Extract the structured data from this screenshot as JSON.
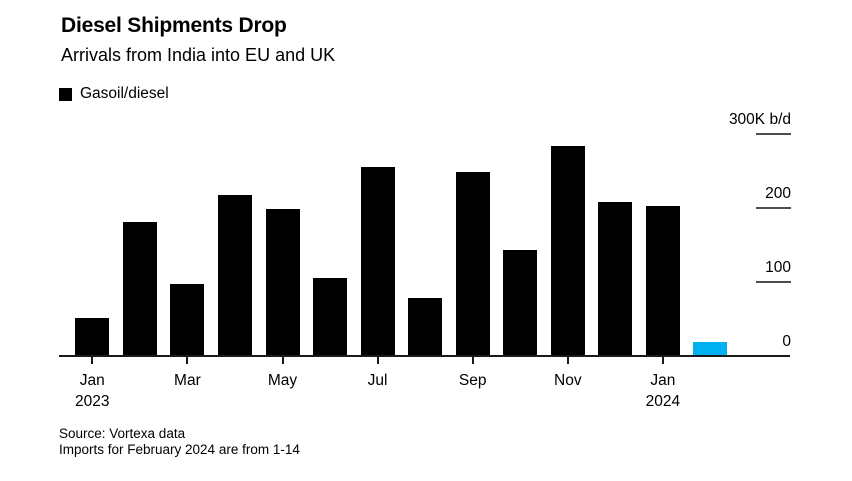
{
  "header": {
    "title": "Diesel Shipments Drop",
    "subtitle": "Arrivals from India into EU and UK"
  },
  "legend": {
    "items": [
      {
        "label": "Gasoil/diesel",
        "color": "#000000"
      }
    ]
  },
  "chart_data": {
    "type": "bar",
    "title": "Diesel Shipments Drop",
    "subtitle": "Arrivals from India into EU and UK",
    "unit": "K b/d",
    "categories": [
      "Jan 2023",
      "Feb 2023",
      "Mar 2023",
      "Apr 2023",
      "May 2023",
      "Jun 2023",
      "Jul 2023",
      "Aug 2023",
      "Sep 2023",
      "Oct 2023",
      "Nov 2023",
      "Dec 2023",
      "Jan 2024",
      "Feb 2024"
    ],
    "series": [
      {
        "name": "Gasoil/diesel",
        "values": [
          50,
          180,
          96,
          216,
          197,
          104,
          254,
          77,
          247,
          142,
          282,
          207,
          201,
          18
        ]
      }
    ],
    "bar_color": "#000000",
    "highlight_index": 13,
    "highlight_color": "#00b0f0",
    "ylim": [
      0,
      300
    ],
    "y_axis_side": "right",
    "grid": false,
    "legend_position": "top-left",
    "y_ticks": [
      {
        "value": 0,
        "label": "0",
        "tick_line": false
      },
      {
        "value": 100,
        "label": "100",
        "tick_line": true
      },
      {
        "value": 200,
        "label": "200",
        "tick_line": true
      },
      {
        "value": 300,
        "label": "300K b/d",
        "tick_line": true
      }
    ],
    "x_ticks": [
      {
        "index": 0,
        "label": "Jan\n2023"
      },
      {
        "index": 2,
        "label": "Mar"
      },
      {
        "index": 4,
        "label": "May"
      },
      {
        "index": 6,
        "label": "Jul"
      },
      {
        "index": 8,
        "label": "Sep"
      },
      {
        "index": 10,
        "label": "Nov"
      },
      {
        "index": 12,
        "label": "Jan\n2024"
      }
    ]
  },
  "footer": {
    "source": "Source: Vortexa data",
    "note": "Imports for February 2024 are from 1-14"
  }
}
